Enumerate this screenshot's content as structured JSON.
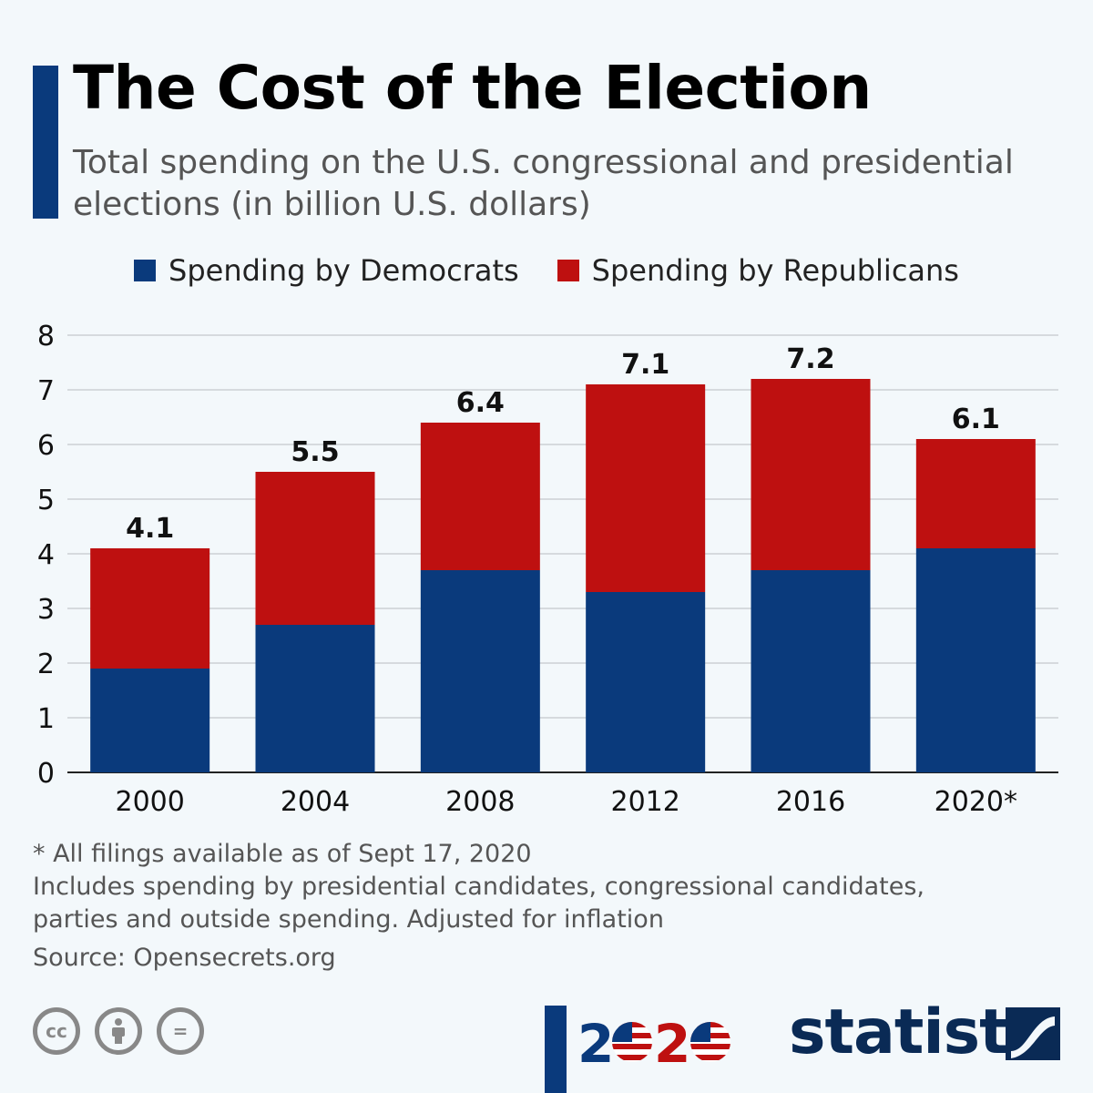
{
  "header": {
    "title": "The Cost of the Election",
    "subtitle": "Total spending on the U.S. congressional and presidential elections (in billion U.S. dollars)"
  },
  "colors": {
    "democrats": "#0a3a7c",
    "republicans": "#be1010",
    "accent": "#0a3a7c"
  },
  "chart_data": {
    "type": "bar",
    "stacked": true,
    "categories": [
      "2000",
      "2004",
      "2008",
      "2012",
      "2016",
      "2020*"
    ],
    "series": [
      {
        "name": "Spending by Democrats",
        "values": [
          1.9,
          2.7,
          3.7,
          3.3,
          3.7,
          4.1
        ]
      },
      {
        "name": "Spending by Republicans",
        "values": [
          2.2,
          2.8,
          2.7,
          3.8,
          3.5,
          2.0
        ]
      }
    ],
    "totals": [
      "4.1",
      "5.5",
      "6.4",
      "7.1",
      "7.2",
      "6.1"
    ],
    "ylim": [
      0,
      8
    ],
    "yticks": [
      "0",
      "1",
      "2",
      "3",
      "4",
      "5",
      "6",
      "7",
      "8"
    ],
    "grid": true,
    "legend_position": "top-center"
  },
  "notes": {
    "footnote": "* All filings available as of Sept 17, 2020",
    "includes_line1": "Includes spending by presidential candidates, congressional candidates,",
    "includes_line2": "parties and outside spending. Adjusted for inflation",
    "source": "Source: Opensecrets.org"
  },
  "footer": {
    "license_icons": [
      "cc-icon",
      "attribution-icon",
      "no-derivatives-icon"
    ],
    "cc_label": "cc",
    "nd_label": "=",
    "year_logo": "2020",
    "brand": "statista"
  }
}
